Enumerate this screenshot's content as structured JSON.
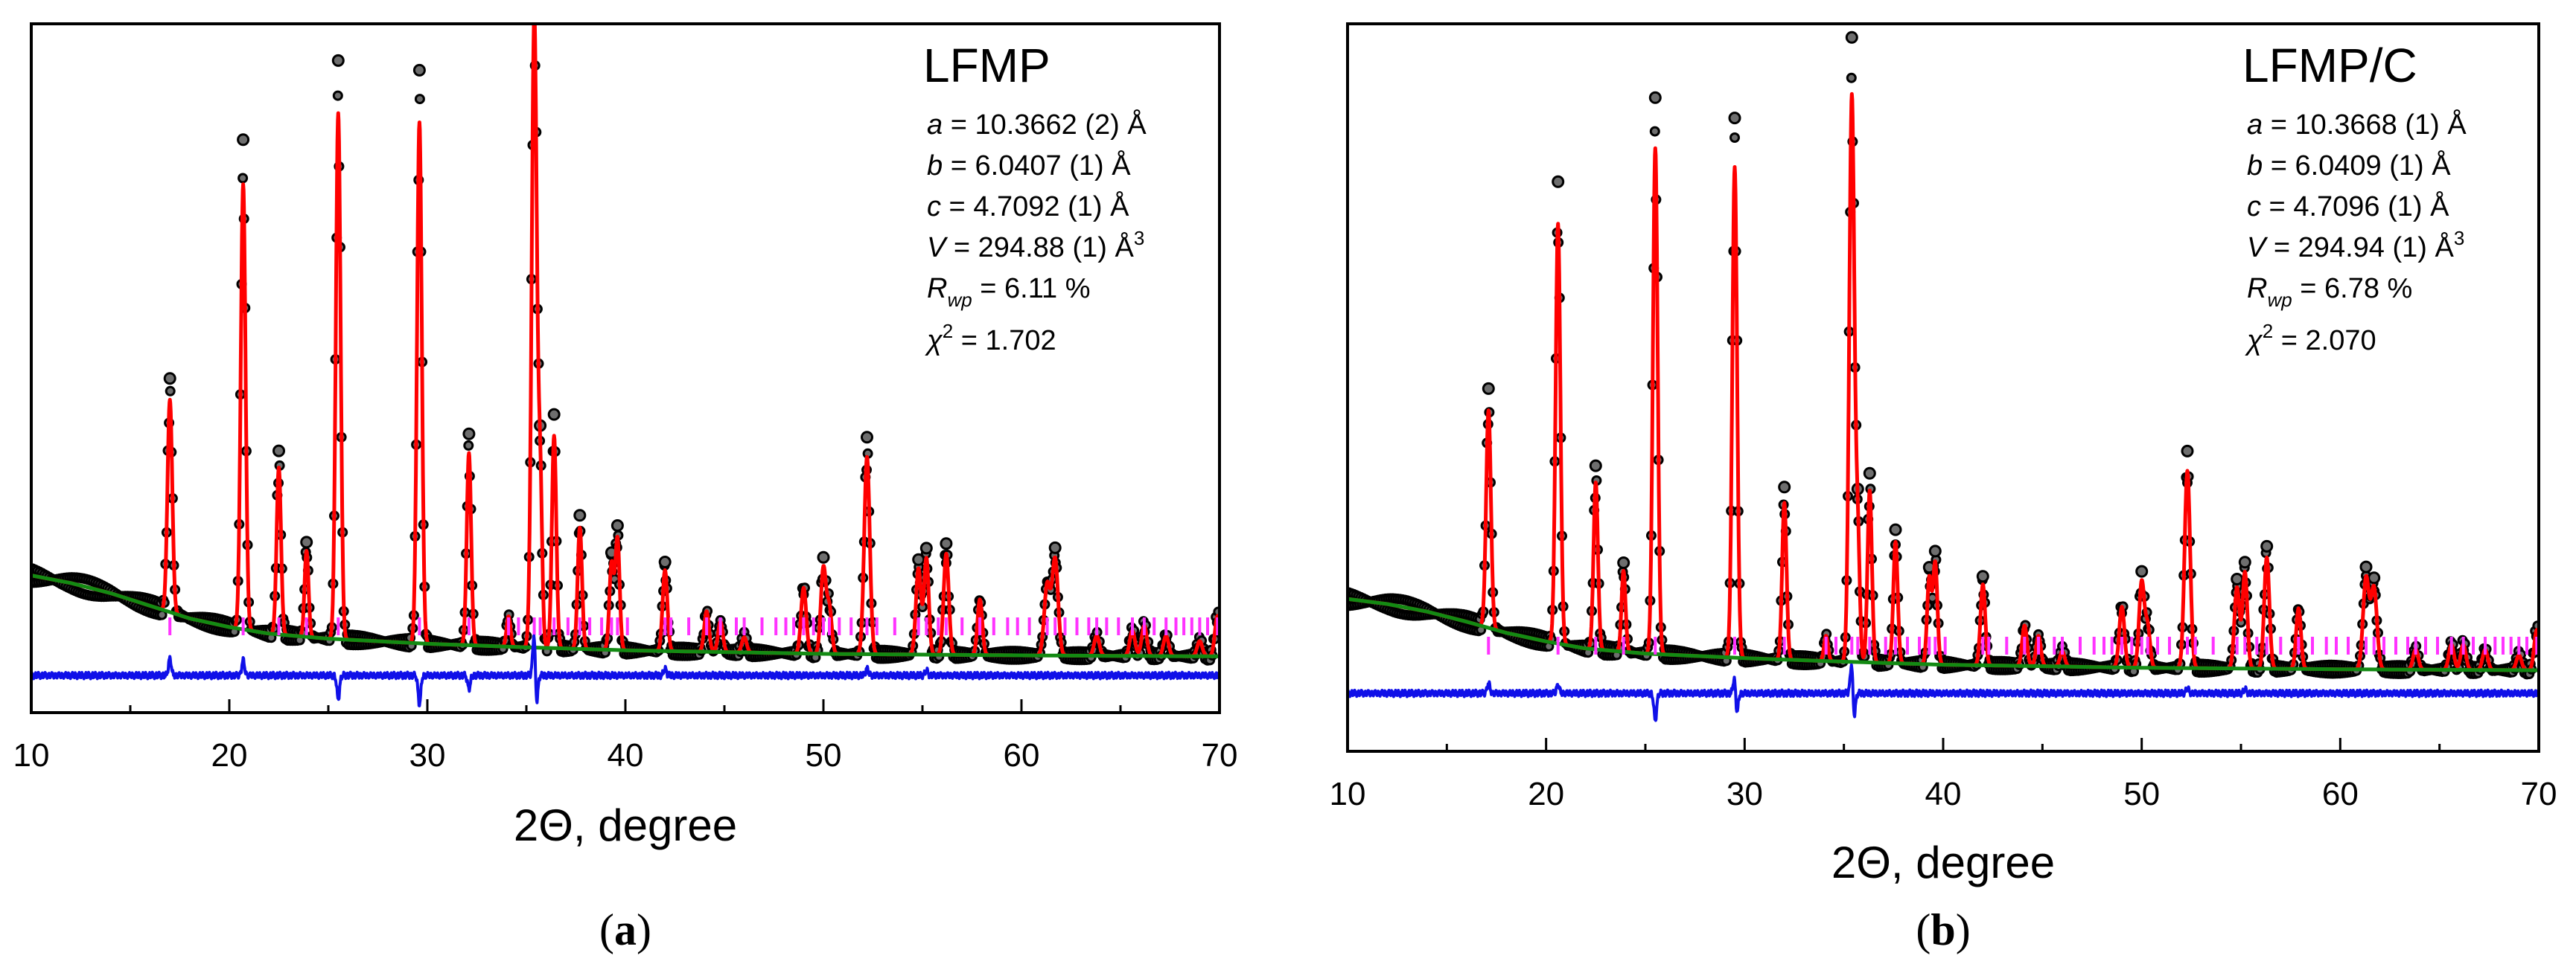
{
  "colors": {
    "observed": "#000000",
    "calculated": "#ff0000",
    "background": "#138a13",
    "difference": "#1010e8",
    "bragg": "#ff33ff"
  },
  "chart_data": [
    {
      "panel": "(a)",
      "panel_letter": "a",
      "type": "line",
      "title": "LFMP",
      "xlabel": "2Θ, degree",
      "ylabel": "",
      "xlim": [
        10,
        70
      ],
      "xticks": [
        "10",
        "20",
        "30",
        "40",
        "50",
        "60",
        "70"
      ],
      "params": {
        "a": "10.3662 (2)",
        "b": "6.0407 (1)",
        "c": "4.7092 (1)",
        "V": "294.88 (1)",
        "Rwp": "6.11",
        "chi2": "1.702"
      },
      "background": [
        [
          10,
          330
        ],
        [
          12,
          315
        ],
        [
          14,
          295
        ],
        [
          16,
          270
        ],
        [
          18,
          245
        ],
        [
          20,
          228
        ],
        [
          22,
          215
        ],
        [
          25,
          205
        ],
        [
          30,
          195
        ],
        [
          35,
          188
        ],
        [
          40,
          182
        ],
        [
          50,
          175
        ],
        [
          60,
          172
        ],
        [
          70,
          170
        ]
      ],
      "peaks": [
        [
          17.0,
          420,
          0.12
        ],
        [
          20.7,
          880,
          0.12
        ],
        [
          22.5,
          330,
          0.11
        ],
        [
          23.9,
          170,
          0.1
        ],
        [
          25.5,
          1040,
          0.12
        ],
        [
          29.6,
          1030,
          0.12
        ],
        [
          32.1,
          380,
          0.11
        ],
        [
          34.1,
          60,
          0.1
        ],
        [
          35.4,
          1250,
          0.13
        ],
        [
          35.7,
          320,
          0.1
        ],
        [
          36.4,
          420,
          0.11
        ],
        [
          37.7,
          240,
          0.11
        ],
        [
          39.3,
          170,
          0.11
        ],
        [
          39.6,
          220,
          0.11
        ],
        [
          42.0,
          160,
          0.12
        ],
        [
          44.1,
          80,
          0.12
        ],
        [
          44.8,
          60,
          0.12
        ],
        [
          46.0,
          30,
          0.12
        ],
        [
          49.0,
          130,
          0.13
        ],
        [
          50.0,
          170,
          0.13
        ],
        [
          50.3,
          90,
          0.12
        ],
        [
          52.2,
          390,
          0.14
        ],
        [
          54.8,
          170,
          0.13
        ],
        [
          55.2,
          190,
          0.12
        ],
        [
          56.2,
          200,
          0.13
        ],
        [
          57.9,
          110,
          0.12
        ],
        [
          61.3,
          140,
          0.15
        ],
        [
          61.7,
          190,
          0.15
        ],
        [
          63.8,
          40,
          0.13
        ],
        [
          65.6,
          50,
          0.13
        ],
        [
          66.2,
          60,
          0.13
        ],
        [
          67.3,
          40,
          0.13
        ],
        [
          69.0,
          30,
          0.13
        ],
        [
          69.9,
          80,
          0.13
        ]
      ],
      "bragg_positions": [
        17.0,
        20.7,
        22.5,
        23.9,
        25.5,
        29.6,
        32.1,
        34.1,
        34.6,
        35.4,
        35.7,
        36.4,
        37.1,
        37.7,
        38.2,
        38.8,
        39.3,
        39.6,
        40.1,
        42.0,
        42.3,
        43.2,
        44.1,
        44.8,
        45.6,
        46.0,
        46.9,
        47.6,
        48.1,
        48.5,
        49.0,
        49.5,
        50.0,
        50.3,
        50.8,
        51.4,
        52.2,
        52.7,
        53.6,
        54.8,
        55.2,
        55.8,
        56.2,
        57.0,
        57.9,
        58.6,
        59.3,
        59.8,
        60.4,
        61.3,
        61.7,
        62.2,
        62.8,
        63.4,
        63.8,
        64.3,
        64.9,
        65.6,
        66.2,
        66.7,
        67.3,
        67.8,
        68.2,
        68.6,
        69.0,
        69.4,
        69.9
      ],
      "difference_spikes": [
        [
          17.0,
          50
        ],
        [
          20.7,
          45
        ],
        [
          25.5,
          -70
        ],
        [
          29.6,
          -85
        ],
        [
          32.1,
          -40
        ],
        [
          35.4,
          150
        ],
        [
          35.5,
          -110
        ],
        [
          42.0,
          20
        ],
        [
          52.2,
          20
        ],
        [
          55.2,
          15
        ]
      ]
    },
    {
      "panel": "(b)",
      "panel_letter": "b",
      "type": "line",
      "title": "LFMP/C",
      "xlabel": "2Θ, degree",
      "ylabel": "",
      "xlim": [
        10,
        70
      ],
      "xticks": [
        "10",
        "20",
        "30",
        "40",
        "50",
        "60",
        "70"
      ],
      "params": {
        "a": "10.3668 (1)",
        "b": "6.0409 (1)",
        "c": "4.7096 (1)",
        "V": "294.94 (1)",
        "Rwp": "6.78",
        "chi2": "2.070"
      },
      "background": [
        [
          10,
          310
        ],
        [
          12,
          300
        ],
        [
          14,
          285
        ],
        [
          16,
          265
        ],
        [
          18,
          243
        ],
        [
          20,
          226
        ],
        [
          22,
          212
        ],
        [
          25,
          202
        ],
        [
          30,
          193
        ],
        [
          35,
          186
        ],
        [
          40,
          180
        ],
        [
          50,
          174
        ],
        [
          60,
          171
        ],
        [
          70,
          169
        ]
      ],
      "peaks": [
        [
          17.1,
          430,
          0.12
        ],
        [
          20.6,
          830,
          0.12
        ],
        [
          22.5,
          330,
          0.11
        ],
        [
          23.9,
          160,
          0.1
        ],
        [
          25.5,
          1000,
          0.12
        ],
        [
          29.5,
          970,
          0.12
        ],
        [
          32.0,
          310,
          0.11
        ],
        [
          34.1,
          50,
          0.1
        ],
        [
          35.4,
          1120,
          0.13
        ],
        [
          35.7,
          240,
          0.1
        ],
        [
          36.3,
          340,
          0.11
        ],
        [
          37.6,
          240,
          0.11
        ],
        [
          39.3,
          170,
          0.11
        ],
        [
          39.6,
          200,
          0.11
        ],
        [
          42.0,
          160,
          0.12
        ],
        [
          44.1,
          80,
          0.12
        ],
        [
          44.8,
          60,
          0.12
        ],
        [
          46.0,
          30,
          0.12
        ],
        [
          49.0,
          120,
          0.13
        ],
        [
          50.0,
          170,
          0.13
        ],
        [
          50.3,
          80,
          0.12
        ],
        [
          52.3,
          390,
          0.14
        ],
        [
          54.8,
          160,
          0.13
        ],
        [
          55.2,
          190,
          0.12
        ],
        [
          56.3,
          220,
          0.13
        ],
        [
          57.9,
          120,
          0.12
        ],
        [
          61.3,
          180,
          0.15
        ],
        [
          61.7,
          160,
          0.15
        ],
        [
          63.8,
          40,
          0.13
        ],
        [
          65.6,
          50,
          0.13
        ],
        [
          66.2,
          50,
          0.13
        ],
        [
          67.3,
          40,
          0.13
        ],
        [
          69.0,
          30,
          0.13
        ],
        [
          69.9,
          80,
          0.13
        ]
      ],
      "bragg_positions": [
        17.1,
        20.6,
        22.5,
        23.9,
        25.5,
        29.5,
        32.0,
        34.1,
        34.6,
        35.4,
        35.7,
        36.3,
        37.1,
        37.6,
        38.2,
        38.8,
        39.3,
        39.6,
        40.1,
        42.0,
        42.3,
        43.2,
        44.1,
        44.8,
        45.6,
        46.0,
        46.9,
        47.6,
        48.1,
        48.5,
        49.0,
        49.5,
        50.0,
        50.3,
        50.8,
        51.4,
        52.3,
        52.7,
        53.6,
        54.8,
        55.2,
        55.8,
        56.3,
        57.0,
        57.9,
        58.6,
        59.3,
        59.8,
        60.4,
        61.3,
        61.7,
        62.2,
        62.8,
        63.4,
        63.8,
        64.3,
        64.9,
        65.6,
        66.2,
        66.7,
        67.3,
        67.8,
        68.2,
        68.6,
        69.0,
        69.4,
        69.9
      ],
      "difference_spikes": [
        [
          17.1,
          30
        ],
        [
          20.6,
          25
        ],
        [
          25.5,
          -80
        ],
        [
          29.5,
          60
        ],
        [
          29.6,
          -70
        ],
        [
          35.4,
          110
        ],
        [
          35.5,
          -90
        ],
        [
          52.3,
          15
        ],
        [
          55.2,
          12
        ]
      ]
    }
  ]
}
